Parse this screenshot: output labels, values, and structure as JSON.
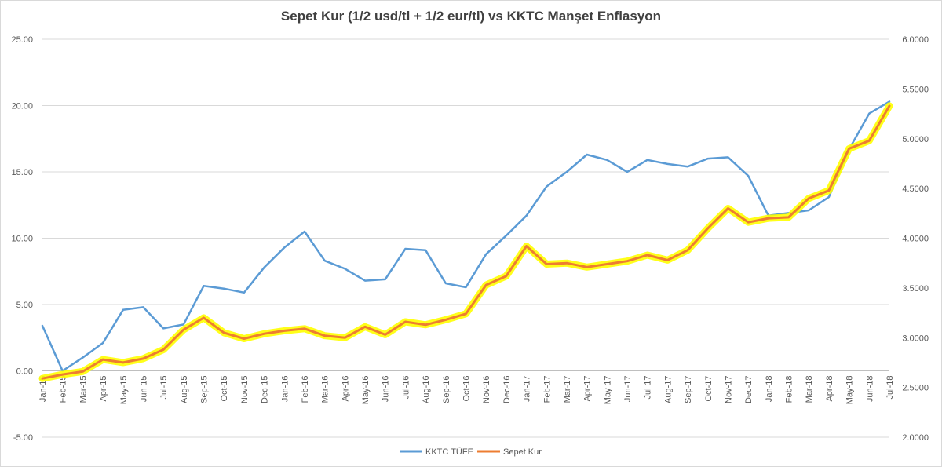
{
  "chart_data": {
    "type": "line",
    "title": "Sepet Kur (1/2 usd/tl + 1/2 eur/tl)  vs  KKTC Manşet Enflasyon",
    "categories": [
      "Jan-15",
      "Feb-15",
      "Mar-15",
      "Apr-15",
      "May-15",
      "Jun-15",
      "Jul-15",
      "Aug-15",
      "Sep-15",
      "Oct-15",
      "Nov-15",
      "Dec-15",
      "Jan-16",
      "Feb-16",
      "Mar-16",
      "Apr-16",
      "May-16",
      "Jun-16",
      "Jul-16",
      "Aug-16",
      "Sep-16",
      "Oct-16",
      "Nov-16",
      "Dec-16",
      "Jan-17",
      "Feb-17",
      "Mar-17",
      "Apr-17",
      "May-17",
      "Jun-17",
      "Jul-17",
      "Aug-17",
      "Sep-17",
      "Oct-17",
      "Nov-17",
      "Dec-17",
      "Jan-18",
      "Feb-18",
      "Mar-18",
      "Apr-18",
      "May-18",
      "Jun-18",
      "Jul-18"
    ],
    "series": [
      {
        "name": "KKTC TÜFE",
        "axis": "left",
        "color": "#5b9bd5",
        "values": [
          3.4,
          0.0,
          1.0,
          2.1,
          4.6,
          4.8,
          3.2,
          3.5,
          6.4,
          6.2,
          5.9,
          7.8,
          9.3,
          10.5,
          8.3,
          7.7,
          6.8,
          6.9,
          9.2,
          9.1,
          6.6,
          6.3,
          8.8,
          10.2,
          11.7,
          13.9,
          15.0,
          16.3,
          15.9,
          15.0,
          15.9,
          15.6,
          15.4,
          16.0,
          16.1,
          14.7,
          11.7,
          11.9,
          12.1,
          13.1,
          16.7,
          19.4,
          20.3
        ]
      },
      {
        "name": "Sepet Kur",
        "axis": "right",
        "color": "#ed7d31",
        "glow": "#ffff00",
        "values": [
          2.59,
          2.63,
          2.66,
          2.78,
          2.75,
          2.79,
          2.88,
          3.08,
          3.2,
          3.05,
          2.99,
          3.04,
          3.07,
          3.09,
          3.02,
          3.0,
          3.11,
          3.03,
          3.16,
          3.13,
          3.18,
          3.24,
          3.53,
          3.62,
          3.92,
          3.74,
          3.75,
          3.71,
          3.74,
          3.77,
          3.83,
          3.78,
          3.88,
          4.1,
          4.3,
          4.16,
          4.2,
          4.21,
          4.4,
          4.48,
          4.9,
          4.98,
          5.33
        ]
      }
    ],
    "y_left": {
      "min": -5,
      "max": 25,
      "step": 5,
      "decimals": 2,
      "ticks": [
        "-5.00",
        "0.00",
        "5.00",
        "10.00",
        "15.00",
        "20.00",
        "25.00"
      ]
    },
    "y_right": {
      "min": 2.0,
      "max": 6.0,
      "step": 0.5,
      "decimals": 4,
      "ticks": [
        "2.0000",
        "2.5000",
        "3.0000",
        "3.5000",
        "4.0000",
        "4.5000",
        "5.0000",
        "5.5000",
        "6.0000"
      ]
    },
    "grid": true,
    "legend": "bottom-center"
  }
}
